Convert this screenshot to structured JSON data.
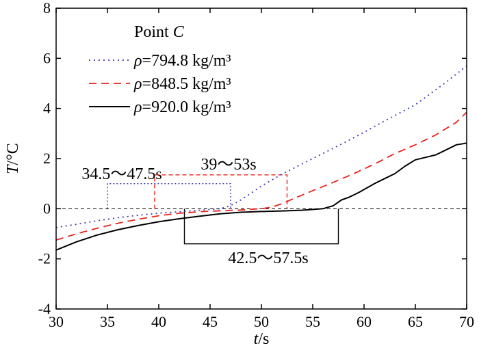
{
  "chart_data": {
    "type": "line",
    "xlabel_italic": "t",
    "xlabel_rest": "/s",
    "ylabel_italic": "T",
    "ylabel_rest": "/°C",
    "xlim": [
      30,
      70
    ],
    "ylim": [
      -4,
      8
    ],
    "xticks": [
      30,
      35,
      40,
      45,
      50,
      55,
      60,
      65,
      70
    ],
    "yticks": [
      -4,
      -2,
      0,
      2,
      4,
      6,
      8
    ],
    "grid": false,
    "reference_line_y": 0,
    "legend": {
      "position": "top-left",
      "title_prefix": "Point ",
      "title_italic": "C"
    },
    "series": [
      {
        "symbol": "ρ",
        "label_rest": "=794.8 kg/m³",
        "color": "#3b3bb0",
        "style": "dotted",
        "points": [
          [
            30,
            -0.75
          ],
          [
            32,
            -0.62
          ],
          [
            34,
            -0.48
          ],
          [
            36,
            -0.36
          ],
          [
            38,
            -0.26
          ],
          [
            40,
            -0.18
          ],
          [
            42,
            -0.12
          ],
          [
            44,
            -0.06
          ],
          [
            45,
            -0.03
          ],
          [
            46,
            0.0
          ],
          [
            47,
            0.12
          ],
          [
            48,
            0.35
          ],
          [
            49,
            0.62
          ],
          [
            50,
            0.9
          ],
          [
            52,
            1.38
          ],
          [
            55,
            2.0
          ],
          [
            58,
            2.62
          ],
          [
            60,
            3.05
          ],
          [
            62,
            3.5
          ],
          [
            65,
            4.15
          ],
          [
            68,
            5.05
          ],
          [
            70,
            5.7
          ]
        ]
      },
      {
        "symbol": "ρ",
        "label_rest": "=848.5 kg/m³",
        "color": "#e8221b",
        "style": "dashed",
        "points": [
          [
            30,
            -1.25
          ],
          [
            32,
            -1.0
          ],
          [
            34,
            -0.78
          ],
          [
            36,
            -0.58
          ],
          [
            38,
            -0.42
          ],
          [
            40,
            -0.28
          ],
          [
            42,
            -0.18
          ],
          [
            44,
            -0.12
          ],
          [
            46,
            -0.08
          ],
          [
            48,
            -0.05
          ],
          [
            50,
            0.0
          ],
          [
            51,
            0.06
          ],
          [
            52,
            0.2
          ],
          [
            53,
            0.38
          ],
          [
            55,
            0.72
          ],
          [
            57,
            1.05
          ],
          [
            59,
            1.4
          ],
          [
            61,
            1.78
          ],
          [
            63,
            2.2
          ],
          [
            65,
            2.55
          ],
          [
            67,
            2.95
          ],
          [
            69,
            3.45
          ],
          [
            70,
            3.85
          ]
        ]
      },
      {
        "symbol": "ρ",
        "label_rest": "=920.0 kg/m³",
        "color": "#000000",
        "style": "solid",
        "points": [
          [
            30,
            -1.65
          ],
          [
            32,
            -1.32
          ],
          [
            34,
            -1.05
          ],
          [
            36,
            -0.84
          ],
          [
            38,
            -0.67
          ],
          [
            40,
            -0.52
          ],
          [
            42,
            -0.4
          ],
          [
            44,
            -0.3
          ],
          [
            46,
            -0.2
          ],
          [
            48,
            -0.14
          ],
          [
            50,
            -0.11
          ],
          [
            52,
            -0.09
          ],
          [
            54,
            -0.06
          ],
          [
            55,
            -0.03
          ],
          [
            56,
            0.0
          ],
          [
            57,
            0.12
          ],
          [
            57.8,
            0.35
          ],
          [
            58.5,
            0.45
          ],
          [
            59.5,
            0.65
          ],
          [
            61,
            1.0
          ],
          [
            62,
            1.2
          ],
          [
            63,
            1.4
          ],
          [
            64,
            1.7
          ],
          [
            65,
            1.95
          ],
          [
            66,
            2.05
          ],
          [
            67,
            2.15
          ],
          [
            68,
            2.35
          ],
          [
            69,
            2.55
          ],
          [
            70,
            2.62
          ]
        ]
      }
    ],
    "annotations": [
      {
        "text": "34.5～47.5s",
        "x1": 35,
        "x2": 47,
        "y": 1.0,
        "color": "#3b3bb0",
        "style": "dotted",
        "direction": "up"
      },
      {
        "text": "39～53s",
        "x1": 39.6,
        "x2": 52.5,
        "y": 1.35,
        "color": "#e8221b",
        "style": "dashed",
        "direction": "up"
      },
      {
        "text": "42.5～57.5s",
        "x1": 42.5,
        "x2": 57.5,
        "y": -1.4,
        "color": "#000000",
        "style": "solid",
        "direction": "down"
      }
    ]
  }
}
